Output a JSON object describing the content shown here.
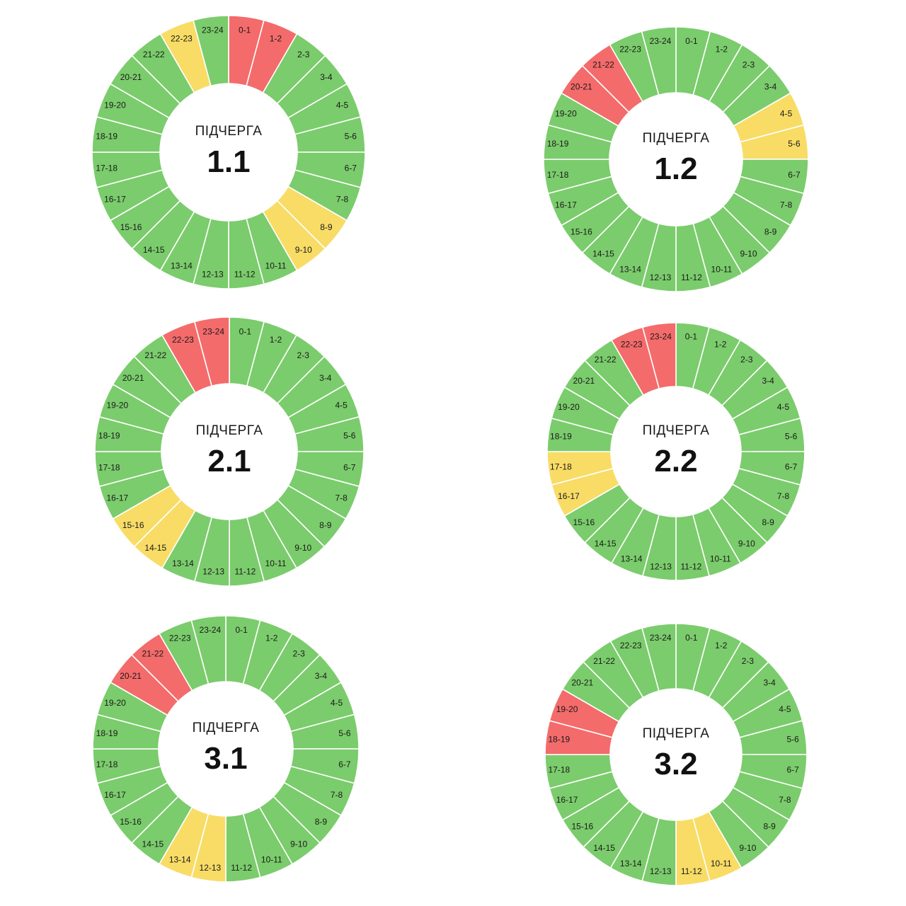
{
  "colors": {
    "on": "#7bcc6c",
    "possible": "#f8dc66",
    "off": "#f46b6b",
    "separator": "#ffffff"
  },
  "center_caption": "ПІДЧЕРГА",
  "hours": [
    "0-1",
    "1-2",
    "2-3",
    "3-4",
    "4-5",
    "5-6",
    "6-7",
    "7-8",
    "8-9",
    "9-10",
    "10-11",
    "11-12",
    "12-13",
    "13-14",
    "14-15",
    "15-16",
    "16-17",
    "17-18",
    "18-19",
    "19-20",
    "20-21",
    "21-22",
    "22-23",
    "23-24"
  ],
  "chart_data": [
    {
      "type": "pie",
      "title": "1.1",
      "off": [
        "0-1",
        "1-2"
      ],
      "possible": [
        "8-9",
        "9-10",
        "22-23"
      ]
    },
    {
      "type": "pie",
      "title": "1.2",
      "off": [
        "20-21",
        "21-22"
      ],
      "possible": [
        "4-5",
        "5-6"
      ]
    },
    {
      "type": "pie",
      "title": "2.1",
      "off": [
        "22-23",
        "23-24"
      ],
      "possible": [
        "14-15",
        "15-16"
      ]
    },
    {
      "type": "pie",
      "title": "2.2",
      "off": [
        "22-23",
        "23-24"
      ],
      "possible": [
        "16-17",
        "17-18"
      ]
    },
    {
      "type": "pie",
      "title": "3.1",
      "off": [
        "20-21",
        "21-22"
      ],
      "possible": [
        "12-13",
        "13-14"
      ]
    },
    {
      "type": "pie",
      "title": "3.2",
      "off": [
        "18-19",
        "19-20"
      ],
      "possible": [
        "10-11",
        "11-12"
      ]
    }
  ]
}
